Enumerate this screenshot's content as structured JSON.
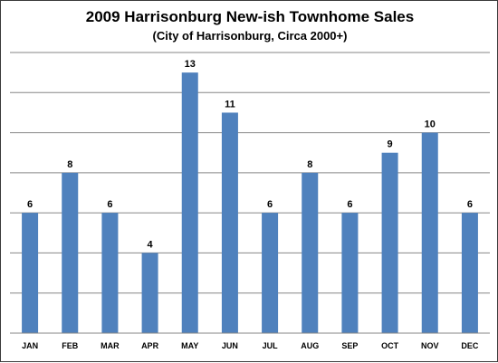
{
  "chart_data": {
    "type": "bar",
    "title": "2009 Harrisonburg New-ish Townhome Sales",
    "subtitle": "(City of Harrisonburg, Circa 2000+)",
    "categories": [
      "JAN",
      "FEB",
      "MAR",
      "APR",
      "MAY",
      "JUN",
      "JUL",
      "AUG",
      "SEP",
      "OCT",
      "NOV",
      "DEC"
    ],
    "values": [
      6,
      8,
      6,
      4,
      13,
      11,
      6,
      8,
      6,
      9,
      10,
      6
    ],
    "ylim": [
      0,
      14
    ],
    "grid": true,
    "bar_color": "#4f81bd",
    "grid_color": "#868686"
  }
}
